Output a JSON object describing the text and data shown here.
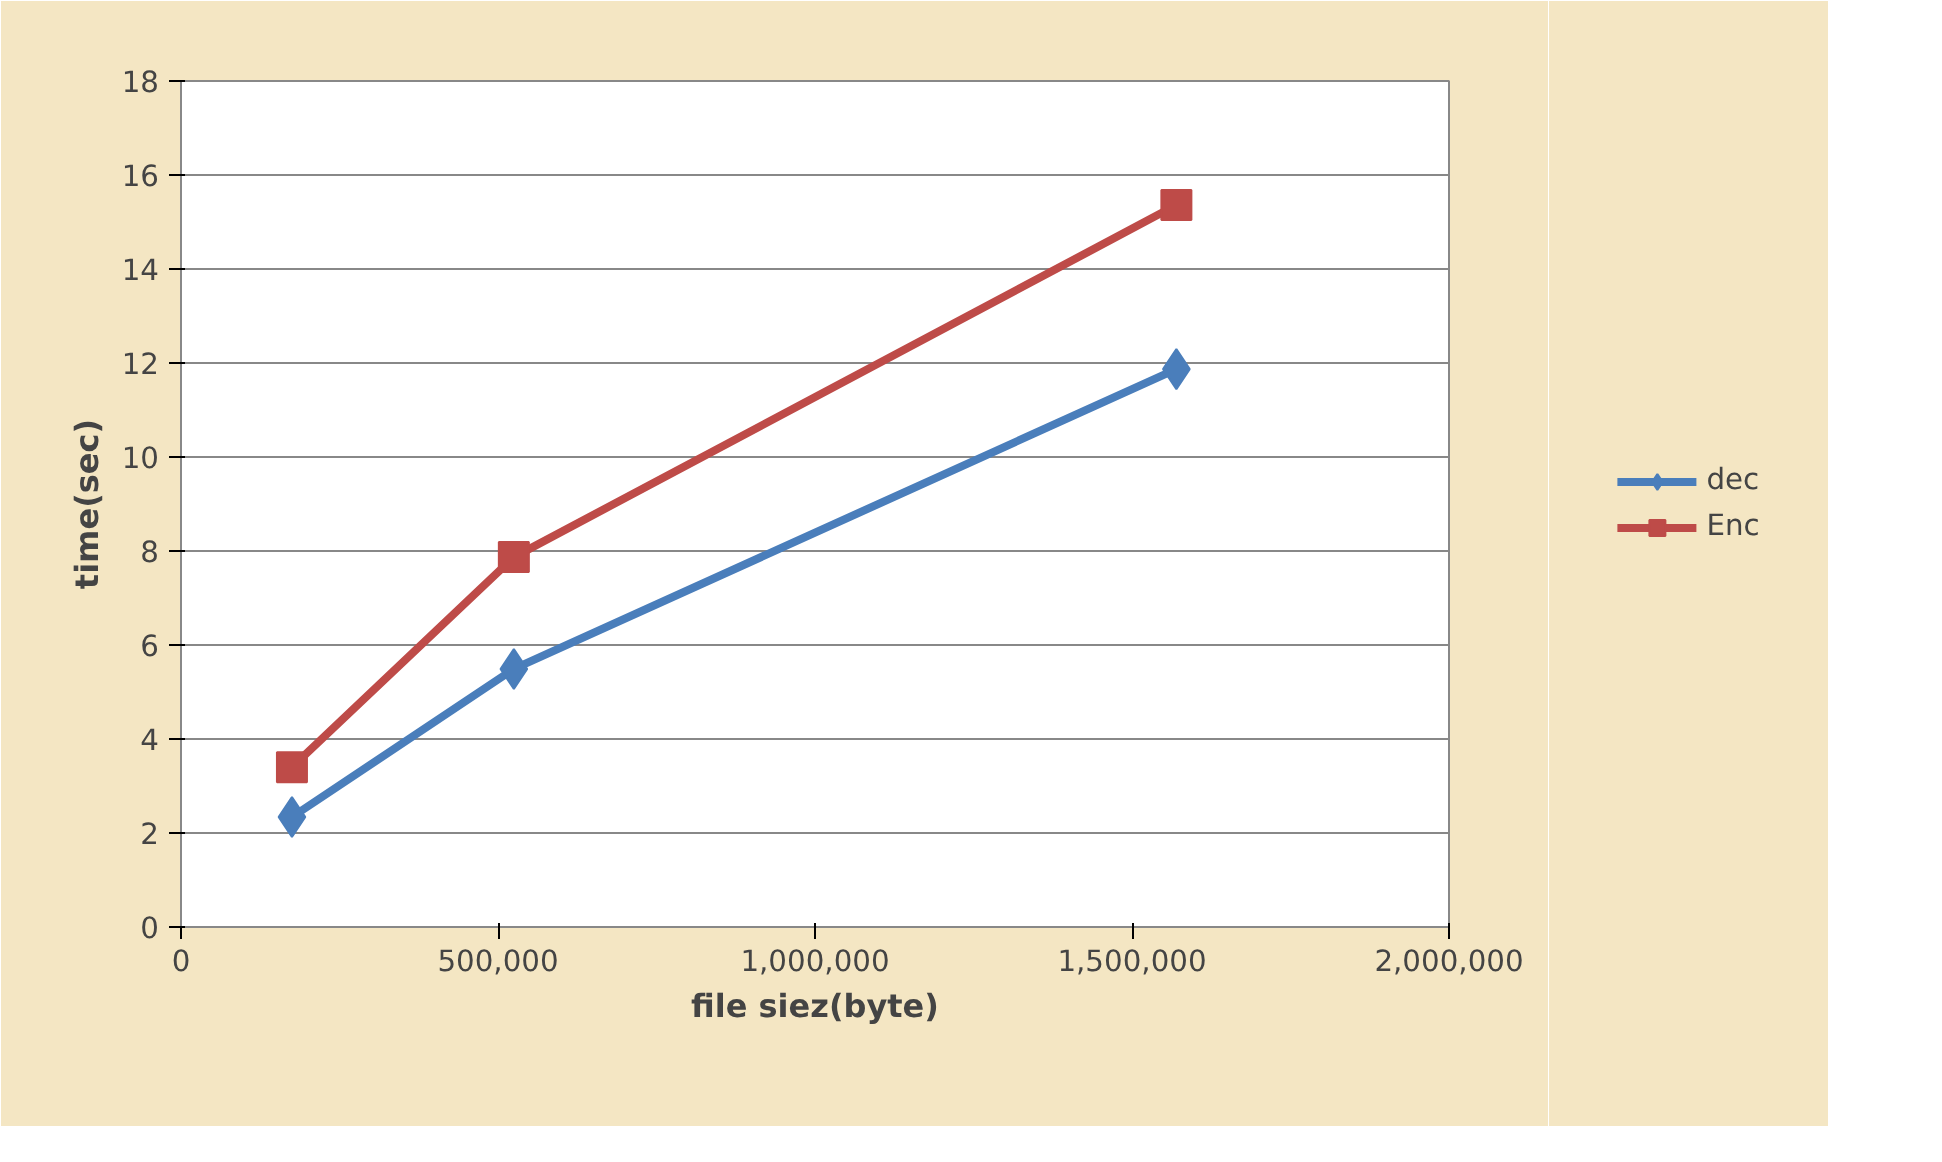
{
  "chart_data": {
    "type": "line",
    "xlabel": "file siez(byte)",
    "ylabel": "time(sec)",
    "x": [
      175000,
      525000,
      1570000
    ],
    "series": [
      {
        "name": "dec",
        "color": "#4a7ebb",
        "values": [
          2.34,
          5.49,
          11.87
        ],
        "marker": "diamond"
      },
      {
        "name": "Enc",
        "color": "#be4b48",
        "values": [
          3.4,
          7.87,
          15.36
        ],
        "marker": "square"
      }
    ],
    "xlim": [
      0,
      2000000
    ],
    "xticks": [
      {
        "value": 0,
        "label": "0"
      },
      {
        "value": 500000,
        "label": "500,000"
      },
      {
        "value": 1000000,
        "label": "1,000,000"
      },
      {
        "value": 1500000,
        "label": "1,500,000"
      },
      {
        "value": 2000000,
        "label": "2,000,000"
      }
    ],
    "ylim": [
      0,
      18
    ],
    "yticks": [
      0,
      2,
      4,
      6,
      8,
      10,
      12,
      14,
      16,
      18
    ],
    "grid": "y",
    "legend": "right",
    "line_style": "solid"
  }
}
